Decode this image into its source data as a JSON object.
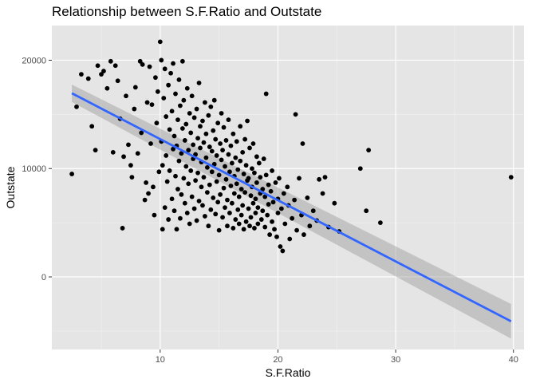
{
  "chart_data": {
    "type": "scatter",
    "title": "Relationship between S.F.Ratio and Outstate",
    "xlabel": "S.F.Ratio",
    "ylabel": "Outstate",
    "xlim": [
      0.8,
      40.9
    ],
    "ylim": [
      -6700,
      23200
    ],
    "x_ticks": [
      10,
      20,
      30,
      40
    ],
    "y_ticks": [
      0,
      10000,
      20000
    ],
    "x_tick_labels": [
      "10",
      "20",
      "30",
      "40"
    ],
    "y_tick_labels": [
      "0",
      "10000",
      "20000"
    ],
    "grid": true,
    "colors": {
      "panel": "#e5e5e5",
      "points": "#000000",
      "fit_line": "#3366ff",
      "ribbon": "#999999"
    },
    "series": [
      {
        "type": "scatter",
        "points": [
          [
            2.5,
            9500
          ],
          [
            2.9,
            15700
          ],
          [
            3.3,
            18700
          ],
          [
            3.9,
            18300
          ],
          [
            4.2,
            13900
          ],
          [
            4.5,
            11700
          ],
          [
            4.7,
            19500
          ],
          [
            5.0,
            18700
          ],
          [
            5.2,
            19000
          ],
          [
            5.5,
            17400
          ],
          [
            5.8,
            19900
          ],
          [
            6.0,
            11500
          ],
          [
            6.2,
            19500
          ],
          [
            6.4,
            18100
          ],
          [
            6.6,
            14600
          ],
          [
            6.8,
            4500
          ],
          [
            6.9,
            11100
          ],
          [
            7.1,
            16700
          ],
          [
            7.3,
            12200
          ],
          [
            7.5,
            10300
          ],
          [
            7.6,
            9200
          ],
          [
            7.8,
            15500
          ],
          [
            7.9,
            17500
          ],
          [
            8.1,
            11400
          ],
          [
            8.3,
            19900
          ],
          [
            8.4,
            13300
          ],
          [
            8.5,
            19600
          ],
          [
            8.7,
            7100
          ],
          [
            8.8,
            8700
          ],
          [
            8.9,
            16100
          ],
          [
            9.0,
            7700
          ],
          [
            9.1,
            19400
          ],
          [
            9.2,
            12300
          ],
          [
            9.3,
            15900
          ],
          [
            9.4,
            8300
          ],
          [
            9.5,
            5700
          ],
          [
            9.6,
            18400
          ],
          [
            9.7,
            14200
          ],
          [
            9.8,
            17100
          ],
          [
            9.9,
            9700
          ],
          [
            10.0,
            21700
          ],
          [
            10.1,
            12500
          ],
          [
            10.1,
            20000
          ],
          [
            10.2,
            4400
          ],
          [
            10.2,
            10300
          ],
          [
            10.3,
            16500
          ],
          [
            10.4,
            6400
          ],
          [
            10.4,
            19200
          ],
          [
            10.5,
            11200
          ],
          [
            10.5,
            14800
          ],
          [
            10.6,
            8800
          ],
          [
            10.7,
            17700
          ],
          [
            10.7,
            5300
          ],
          [
            10.8,
            13600
          ],
          [
            10.8,
            9800
          ],
          [
            10.9,
            18800
          ],
          [
            11.0,
            7200
          ],
          [
            11.0,
            15300
          ],
          [
            11.1,
            11800
          ],
          [
            11.1,
            19700
          ],
          [
            11.2,
            6100
          ],
          [
            11.2,
            13000
          ],
          [
            11.3,
            9300
          ],
          [
            11.3,
            16900
          ],
          [
            11.4,
            4400
          ],
          [
            11.4,
            12100
          ],
          [
            11.5,
            14500
          ],
          [
            11.5,
            8100
          ],
          [
            11.6,
            18200
          ],
          [
            11.6,
            10700
          ],
          [
            11.7,
            5400
          ],
          [
            11.7,
            15800
          ],
          [
            11.8,
            11400
          ],
          [
            11.8,
            7600
          ],
          [
            11.9,
            13700
          ],
          [
            11.9,
            19900
          ],
          [
            12.0,
            9100
          ],
          [
            12.0,
            16300
          ],
          [
            12.1,
            6800
          ],
          [
            12.1,
            12600
          ],
          [
            12.2,
            14100
          ],
          [
            12.2,
            10200
          ],
          [
            12.3,
            17400
          ],
          [
            12.3,
            5900
          ],
          [
            12.4,
            11700
          ],
          [
            12.4,
            8600
          ],
          [
            12.5,
            15100
          ],
          [
            12.5,
            4900
          ],
          [
            12.6,
            13300
          ],
          [
            12.6,
            9800
          ],
          [
            12.7,
            16700
          ],
          [
            12.7,
            7400
          ],
          [
            12.8,
            12200
          ],
          [
            12.8,
            10900
          ],
          [
            12.9,
            14700
          ],
          [
            12.9,
            6300
          ],
          [
            13.0,
            11300
          ],
          [
            13.0,
            8900
          ],
          [
            13.1,
            15500
          ],
          [
            13.1,
            5200
          ],
          [
            13.2,
            12800
          ],
          [
            13.2,
            9600
          ],
          [
            13.3,
            17900
          ],
          [
            13.3,
            7000
          ],
          [
            13.4,
            11900
          ],
          [
            13.4,
            13900
          ],
          [
            13.5,
            8300
          ],
          [
            13.5,
            10600
          ],
          [
            13.6,
            14400
          ],
          [
            13.6,
            6600
          ],
          [
            13.7,
            12400
          ],
          [
            13.7,
            9200
          ],
          [
            13.8,
            16100
          ],
          [
            13.8,
            5600
          ],
          [
            13.9,
            11000
          ],
          [
            13.9,
            13200
          ],
          [
            14.0,
            7800
          ],
          [
            14.0,
            10100
          ],
          [
            14.1,
            14900
          ],
          [
            14.1,
            4700
          ],
          [
            14.2,
            12000
          ],
          [
            14.2,
            8500
          ],
          [
            14.3,
            15700
          ],
          [
            14.3,
            6200
          ],
          [
            14.4,
            11600
          ],
          [
            14.4,
            9700
          ],
          [
            14.5,
            13500
          ],
          [
            14.5,
            7300
          ],
          [
            14.6,
            10400
          ],
          [
            14.6,
            16300
          ],
          [
            14.7,
            5800
          ],
          [
            14.7,
            12700
          ],
          [
            14.8,
            8800
          ],
          [
            14.8,
            11200
          ],
          [
            14.9,
            6900
          ],
          [
            14.9,
            14200
          ],
          [
            15.0,
            9400
          ],
          [
            15.0,
            4300
          ],
          [
            15.1,
            12300
          ],
          [
            15.1,
            7600
          ],
          [
            15.2,
            10800
          ],
          [
            15.2,
            15100
          ],
          [
            15.3,
            5500
          ],
          [
            15.3,
            11700
          ],
          [
            15.4,
            8200
          ],
          [
            15.4,
            13800
          ],
          [
            15.5,
            6400
          ],
          [
            15.5,
            10200
          ],
          [
            15.6,
            9000
          ],
          [
            15.6,
            12600
          ],
          [
            15.7,
            4700
          ],
          [
            15.7,
            7100
          ],
          [
            15.8,
            11300
          ],
          [
            15.8,
            14500
          ],
          [
            15.9,
            5900
          ],
          [
            15.9,
            9700
          ],
          [
            16.0,
            8400
          ],
          [
            16.0,
            12100
          ],
          [
            16.1,
            6800
          ],
          [
            16.1,
            10500
          ],
          [
            16.2,
            4500
          ],
          [
            16.2,
            13200
          ],
          [
            16.3,
            7700
          ],
          [
            16.3,
            9300
          ],
          [
            16.4,
            5300
          ],
          [
            16.4,
            11000
          ],
          [
            16.5,
            8600
          ],
          [
            16.5,
            12500
          ],
          [
            16.6,
            6200
          ],
          [
            16.6,
            9900
          ],
          [
            16.7,
            4900
          ],
          [
            16.7,
            7400
          ],
          [
            16.8,
            10700
          ],
          [
            16.8,
            13900
          ],
          [
            16.9,
            5700
          ],
          [
            16.9,
            8100
          ],
          [
            17.0,
            11500
          ],
          [
            17.0,
            6600
          ],
          [
            17.1,
            9500
          ],
          [
            17.1,
            4400
          ],
          [
            17.2,
            12700
          ],
          [
            17.2,
            7800
          ],
          [
            17.3,
            5100
          ],
          [
            17.3,
            10300
          ],
          [
            17.4,
            8900
          ],
          [
            17.4,
            14400
          ],
          [
            17.5,
            6300
          ],
          [
            17.5,
            9100
          ],
          [
            17.6,
            4700
          ],
          [
            17.6,
            11900
          ],
          [
            17.7,
            7500
          ],
          [
            17.7,
            5500
          ],
          [
            17.8,
            10000
          ],
          [
            17.8,
            8300
          ],
          [
            17.9,
            6800
          ],
          [
            17.9,
            12300
          ],
          [
            18.0,
            4500
          ],
          [
            18.0,
            9600
          ],
          [
            18.1,
            7200
          ],
          [
            18.1,
            5900
          ],
          [
            18.2,
            11100
          ],
          [
            18.2,
            8700
          ],
          [
            18.3,
            6400
          ],
          [
            18.3,
            4900
          ],
          [
            18.4,
            10500
          ],
          [
            18.5,
            7700
          ],
          [
            18.5,
            9200
          ],
          [
            18.6,
            5300
          ],
          [
            18.7,
            8100
          ],
          [
            18.7,
            6100
          ],
          [
            18.8,
            10900
          ],
          [
            18.9,
            4600
          ],
          [
            18.9,
            7400
          ],
          [
            19.0,
            16900
          ],
          [
            19.0,
            9400
          ],
          [
            19.1,
            5700
          ],
          [
            19.2,
            8500
          ],
          [
            19.2,
            6700
          ],
          [
            19.3,
            3900
          ],
          [
            19.4,
            7900
          ],
          [
            19.5,
            9800
          ],
          [
            19.5,
            5100
          ],
          [
            19.6,
            6900
          ],
          [
            19.7,
            4400
          ],
          [
            19.8,
            8700
          ],
          [
            19.9,
            3700
          ],
          [
            20.0,
            7200
          ],
          [
            20.0,
            5900
          ],
          [
            20.1,
            9100
          ],
          [
            20.2,
            2800
          ],
          [
            20.3,
            6300
          ],
          [
            20.4,
            2400
          ],
          [
            20.5,
            7700
          ],
          [
            20.6,
            4900
          ],
          [
            20.8,
            8300
          ],
          [
            20.9,
            6600
          ],
          [
            21.0,
            3500
          ],
          [
            21.2,
            5400
          ],
          [
            21.4,
            7100
          ],
          [
            21.5,
            15000
          ],
          [
            21.6,
            4300
          ],
          [
            21.8,
            9100
          ],
          [
            22.0,
            5700
          ],
          [
            22.1,
            12300
          ],
          [
            22.2,
            3900
          ],
          [
            22.5,
            7300
          ],
          [
            22.7,
            4700
          ],
          [
            23.0,
            6100
          ],
          [
            23.3,
            5200
          ],
          [
            23.5,
            9000
          ],
          [
            23.8,
            7700
          ],
          [
            24.0,
            9200
          ],
          [
            24.3,
            4600
          ],
          [
            24.8,
            6800
          ],
          [
            25.2,
            4200
          ],
          [
            27.0,
            10000
          ],
          [
            27.5,
            6100
          ],
          [
            27.7,
            11700
          ],
          [
            28.7,
            5000
          ],
          [
            39.8,
            9200
          ]
        ]
      },
      {
        "type": "line",
        "name": "linear fit",
        "x": [
          2.5,
          39.8
        ],
        "y": [
          16950,
          -4100
        ],
        "ribbon_lower": [
          16150,
          -5700
        ],
        "ribbon_upper": [
          17750,
          -2500
        ]
      }
    ]
  }
}
